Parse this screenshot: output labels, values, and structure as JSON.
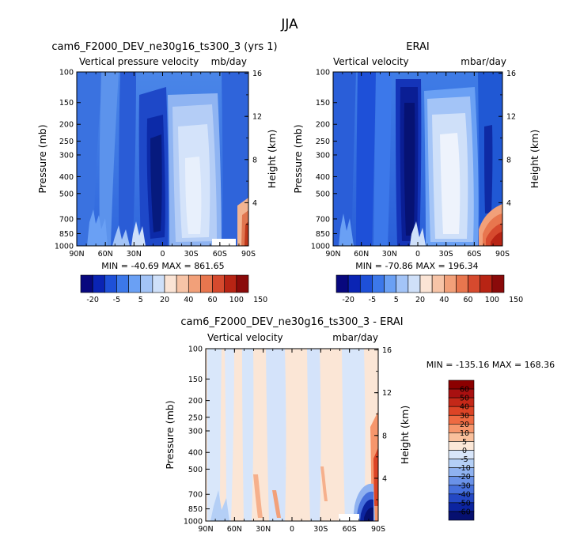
{
  "figure": {
    "title": "JJA"
  },
  "chart_data": [
    {
      "type": "heatmap",
      "title": "cam6_F2000_DEV_ne30g16_ts300_3 (yrs 1)",
      "variable_label": "Vertical pressure velocity",
      "units_label": "mb/day",
      "xlabel": "",
      "ylabel": "Pressure (mb)",
      "y2label": "Height (km)",
      "x_ticks": [
        "90N",
        "60N",
        "30N",
        "0",
        "30S",
        "60S",
        "90S"
      ],
      "x_values": [
        90,
        60,
        30,
        0,
        -30,
        -60,
        -90
      ],
      "y_ticks": [
        "100",
        "150",
        "200",
        "250",
        "300",
        "400",
        "500",
        "700",
        "850",
        "1000"
      ],
      "y_values": [
        100,
        150,
        200,
        250,
        300,
        400,
        500,
        700,
        850,
        1000
      ],
      "y2_ticks": [
        "16",
        "12",
        "8",
        "4"
      ],
      "y2_values": [
        16,
        12,
        8,
        4
      ],
      "ylim": [
        1000,
        100
      ],
      "xlim": [
        90,
        -90
      ],
      "stats_text": "MIN = -40.69   MAX = 861.65",
      "min": -40.69,
      "max": 861.65,
      "colorbar": {
        "orientation": "horizontal",
        "labels": [
          "-20",
          "-5",
          "5",
          "20",
          "40",
          "60",
          "100",
          "150"
        ],
        "colors": [
          "#08087e",
          "#0a24b4",
          "#1e50d8",
          "#3c78ea",
          "#6aa0f4",
          "#a3c4f7",
          "#cfe0f9",
          "#fbe4d5",
          "#f7c4a7",
          "#f2a079",
          "#e8764e",
          "#d64a2e",
          "#b82414",
          "#8a0a0a"
        ]
      }
    },
    {
      "type": "heatmap",
      "title": "ERAI",
      "variable_label": "Vertical velocity",
      "units_label": "mbar/day",
      "xlabel": "",
      "ylabel": "Pressure (mb)",
      "y2label": "Height (km)",
      "x_ticks": [
        "90N",
        "60N",
        "30N",
        "0",
        "30S",
        "60S",
        "90S"
      ],
      "x_values": [
        90,
        60,
        30,
        0,
        -30,
        -60,
        -90
      ],
      "y_ticks": [
        "100",
        "150",
        "200",
        "250",
        "300",
        "400",
        "500",
        "700",
        "850",
        "1000"
      ],
      "y_values": [
        100,
        150,
        200,
        250,
        300,
        400,
        500,
        700,
        850,
        1000
      ],
      "y2_ticks": [
        "16",
        "12",
        "8",
        "4"
      ],
      "y2_values": [
        16,
        12,
        8,
        4
      ],
      "ylim": [
        1000,
        100
      ],
      "xlim": [
        90,
        -90
      ],
      "stats_text": "MIN = -70.86   MAX = 196.34",
      "min": -70.86,
      "max": 196.34,
      "colorbar": {
        "orientation": "horizontal",
        "labels": [
          "-20",
          "-5",
          "5",
          "20",
          "40",
          "60",
          "100",
          "150"
        ],
        "colors": [
          "#08087e",
          "#0a24b4",
          "#1e50d8",
          "#3c78ea",
          "#6aa0f4",
          "#a3c4f7",
          "#cfe0f9",
          "#fbe4d5",
          "#f7c4a7",
          "#f2a079",
          "#e8764e",
          "#d64a2e",
          "#b82414",
          "#8a0a0a"
        ]
      }
    },
    {
      "type": "heatmap",
      "title": "cam6_F2000_DEV_ne30g16_ts300_3 - ERAI",
      "variable_label": "Vertical velocity",
      "units_label": "mbar/day",
      "xlabel": "",
      "ylabel": "Pressure (mb)",
      "y2label": "Height (km)",
      "x_ticks": [
        "90N",
        "60N",
        "30N",
        "0",
        "30S",
        "60S",
        "90S"
      ],
      "x_values": [
        90,
        60,
        30,
        0,
        -30,
        -60,
        -90
      ],
      "y_ticks": [
        "100",
        "150",
        "200",
        "250",
        "300",
        "400",
        "500",
        "700",
        "850",
        "1000"
      ],
      "y_values": [
        100,
        150,
        200,
        250,
        300,
        400,
        500,
        700,
        850,
        1000
      ],
      "y2_ticks": [
        "16",
        "12",
        "8",
        "4"
      ],
      "y2_values": [
        16,
        12,
        8,
        4
      ],
      "ylim": [
        1000,
        100
      ],
      "xlim": [
        90,
        -90
      ],
      "stats_text": "MIN = -135.16   MAX = 168.36",
      "min": -135.16,
      "max": 168.36,
      "colorbar": {
        "orientation": "vertical",
        "labels": [
          "60",
          "50",
          "40",
          "30",
          "20",
          "10",
          "5",
          "0",
          "-5",
          "-10",
          "-20",
          "-30",
          "-40",
          "-50",
          "-60"
        ],
        "colors": [
          "#8b0000",
          "#a81010",
          "#c42818",
          "#dc4426",
          "#ee6a42",
          "#f6966c",
          "#f9c09c",
          "#fce8d8",
          "#d8e6fa",
          "#b4cff6",
          "#8fb2f0",
          "#6a92e8",
          "#4670dc",
          "#2448c4",
          "#0c24a0",
          "#061070"
        ]
      }
    }
  ]
}
